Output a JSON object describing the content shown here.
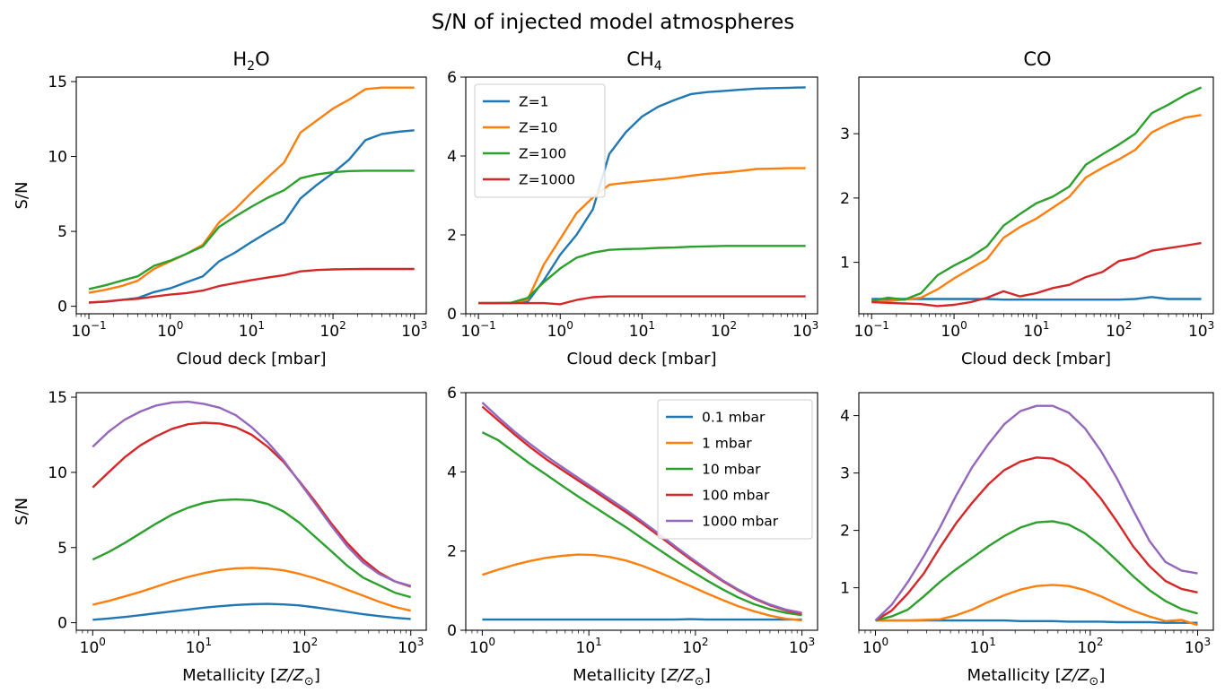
{
  "figure_title": "S/N of injected model atmospheres",
  "colors": {
    "blue": "#1f77b4",
    "orange": "#ff7f0e",
    "green": "#2ca02c",
    "red": "#d62728",
    "purple": "#9467bd"
  },
  "chart_data": [
    {
      "id": "p00",
      "type": "line",
      "title": "H2O",
      "xlabel": "Cloud deck [mbar]",
      "ylabel": "S/N",
      "xscale": "log",
      "xlim": [
        0.07,
        1400
      ],
      "ylim": [
        -0.5,
        15.3
      ],
      "xticks": [
        0.1,
        1,
        10,
        100,
        1000
      ],
      "xtick_labels": [
        [
          "10",
          "−1"
        ],
        [
          "10",
          "0"
        ],
        [
          "10",
          "1"
        ],
        [
          "10",
          "2"
        ],
        [
          "10",
          "3"
        ]
      ],
      "yticks": [
        0,
        5,
        10,
        15
      ],
      "ytick_labels": [
        "0",
        "5",
        "10",
        "15"
      ],
      "x": [
        0.1,
        0.158,
        0.251,
        0.398,
        0.631,
        1,
        1.58,
        2.51,
        3.98,
        6.31,
        10,
        15.8,
        25.1,
        39.8,
        63.1,
        100,
        158,
        251,
        398,
        631,
        1000
      ],
      "series": [
        {
          "name": "Z=1",
          "color": "#1f77b4",
          "values": [
            0.25,
            0.3,
            0.42,
            0.55,
            0.95,
            1.2,
            1.6,
            2.0,
            3.0,
            3.6,
            4.3,
            4.95,
            5.6,
            7.2,
            8.1,
            8.9,
            9.8,
            11.1,
            11.5,
            11.65,
            11.75
          ]
        },
        {
          "name": "Z=10",
          "color": "#ff7f0e",
          "values": [
            0.9,
            1.1,
            1.35,
            1.7,
            2.5,
            3.0,
            3.5,
            4.1,
            5.6,
            6.5,
            7.6,
            8.6,
            9.6,
            11.6,
            12.4,
            13.2,
            13.8,
            14.5,
            14.6,
            14.6,
            14.6
          ]
        },
        {
          "name": "Z=100",
          "color": "#2ca02c",
          "values": [
            1.15,
            1.4,
            1.7,
            2.0,
            2.7,
            3.05,
            3.5,
            4.0,
            5.3,
            6.0,
            6.65,
            7.25,
            7.75,
            8.55,
            8.8,
            8.95,
            9.03,
            9.05,
            9.05,
            9.05,
            9.05
          ]
        },
        {
          "name": "Z=1000",
          "color": "#d62728",
          "values": [
            0.25,
            0.32,
            0.42,
            0.5,
            0.65,
            0.78,
            0.88,
            1.05,
            1.35,
            1.55,
            1.75,
            1.92,
            2.08,
            2.33,
            2.42,
            2.46,
            2.48,
            2.49,
            2.49,
            2.49,
            2.49
          ]
        }
      ]
    },
    {
      "id": "p01",
      "type": "line",
      "title": "CH4",
      "xlabel": "Cloud deck [mbar]",
      "ylabel": "",
      "xscale": "log",
      "xlim": [
        0.07,
        1400
      ],
      "ylim": [
        0,
        6.0
      ],
      "xticks": [
        0.1,
        1,
        10,
        100,
        1000
      ],
      "xtick_labels": [
        [
          "10",
          "−1"
        ],
        [
          "10",
          "0"
        ],
        [
          "10",
          "1"
        ],
        [
          "10",
          "2"
        ],
        [
          "10",
          "3"
        ]
      ],
      "yticks": [
        0,
        2,
        4,
        6
      ],
      "ytick_labels": [
        "0",
        "2",
        "4",
        "6"
      ],
      "legend": {
        "placement": "upper-left"
      },
      "x": [
        0.1,
        0.158,
        0.251,
        0.398,
        0.631,
        1,
        1.58,
        2.51,
        3.98,
        6.31,
        10,
        15.8,
        25.1,
        39.8,
        63.1,
        100,
        158,
        251,
        398,
        631,
        1000
      ],
      "series": [
        {
          "name": "Z=1",
          "color": "#1f77b4",
          "values": [
            0.27,
            0.27,
            0.27,
            0.3,
            0.85,
            1.5,
            2.0,
            2.65,
            4.05,
            4.6,
            5.0,
            5.25,
            5.42,
            5.57,
            5.62,
            5.65,
            5.68,
            5.71,
            5.72,
            5.73,
            5.74
          ]
        },
        {
          "name": "Z=10",
          "color": "#ff7f0e",
          "values": [
            0.27,
            0.27,
            0.28,
            0.35,
            1.25,
            1.9,
            2.55,
            2.95,
            3.27,
            3.32,
            3.36,
            3.4,
            3.44,
            3.5,
            3.55,
            3.58,
            3.62,
            3.67,
            3.68,
            3.69,
            3.69
          ]
        },
        {
          "name": "Z=100",
          "color": "#2ca02c",
          "values": [
            0.27,
            0.27,
            0.28,
            0.4,
            0.8,
            1.15,
            1.42,
            1.55,
            1.62,
            1.64,
            1.65,
            1.67,
            1.68,
            1.7,
            1.71,
            1.72,
            1.72,
            1.72,
            1.72,
            1.72,
            1.72
          ]
        },
        {
          "name": "Z=1000",
          "color": "#d62728",
          "values": [
            0.27,
            0.27,
            0.27,
            0.27,
            0.27,
            0.24,
            0.35,
            0.42,
            0.44,
            0.44,
            0.44,
            0.44,
            0.44,
            0.44,
            0.44,
            0.44,
            0.44,
            0.44,
            0.44,
            0.44,
            0.44
          ]
        }
      ]
    },
    {
      "id": "p02",
      "type": "line",
      "title": "CO",
      "xlabel": "Cloud deck [mbar]",
      "ylabel": "",
      "xscale": "log",
      "xlim": [
        0.07,
        1400
      ],
      "ylim": [
        0.2,
        3.88
      ],
      "xticks": [
        0.1,
        1,
        10,
        100,
        1000
      ],
      "xtick_labels": [
        [
          "10",
          "−1"
        ],
        [
          "10",
          "0"
        ],
        [
          "10",
          "1"
        ],
        [
          "10",
          "2"
        ],
        [
          "10",
          "3"
        ]
      ],
      "yticks": [
        1,
        2,
        3
      ],
      "ytick_labels": [
        "1",
        "2",
        "3"
      ],
      "x": [
        0.1,
        0.158,
        0.251,
        0.398,
        0.631,
        1,
        1.58,
        2.51,
        3.98,
        6.31,
        10,
        15.8,
        25.1,
        39.8,
        63.1,
        100,
        158,
        251,
        398,
        631,
        1000
      ],
      "series": [
        {
          "name": "Z=1",
          "color": "#1f77b4",
          "values": [
            0.43,
            0.43,
            0.43,
            0.43,
            0.43,
            0.43,
            0.43,
            0.43,
            0.42,
            0.42,
            0.42,
            0.42,
            0.42,
            0.42,
            0.42,
            0.42,
            0.43,
            0.46,
            0.43,
            0.43,
            0.43
          ]
        },
        {
          "name": "Z=10",
          "color": "#ff7f0e",
          "values": [
            0.4,
            0.4,
            0.42,
            0.45,
            0.58,
            0.75,
            0.9,
            1.05,
            1.38,
            1.55,
            1.68,
            1.85,
            2.02,
            2.32,
            2.47,
            2.6,
            2.75,
            3.02,
            3.15,
            3.25,
            3.29
          ]
        },
        {
          "name": "Z=100",
          "color": "#2ca02c",
          "values": [
            0.4,
            0.45,
            0.42,
            0.52,
            0.8,
            0.95,
            1.08,
            1.25,
            1.57,
            1.75,
            1.92,
            2.02,
            2.18,
            2.52,
            2.68,
            2.83,
            3.0,
            3.32,
            3.45,
            3.6,
            3.72
          ]
        },
        {
          "name": "Z=1000",
          "color": "#d62728",
          "values": [
            0.38,
            0.37,
            0.36,
            0.35,
            0.32,
            0.34,
            0.38,
            0.45,
            0.55,
            0.47,
            0.52,
            0.6,
            0.65,
            0.77,
            0.85,
            1.02,
            1.07,
            1.18,
            1.22,
            1.26,
            1.3
          ]
        }
      ]
    },
    {
      "id": "p10",
      "type": "line",
      "title": "",
      "xlabel": "Metallicity [Z/Z⊙]",
      "ylabel": "S/N",
      "xscale": "log",
      "xlim": [
        0.7,
        1400
      ],
      "ylim": [
        -0.5,
        15.3
      ],
      "xticks": [
        1,
        10,
        100,
        1000
      ],
      "xtick_labels": [
        [
          "10",
          "0"
        ],
        [
          "10",
          "1"
        ],
        [
          "10",
          "2"
        ],
        [
          "10",
          "3"
        ]
      ],
      "yticks": [
        0,
        5,
        10,
        15
      ],
      "ytick_labels": [
        "0",
        "5",
        "10",
        "15"
      ],
      "x": [
        1,
        1.41,
        2,
        2.82,
        3.98,
        5.62,
        7.94,
        11.2,
        15.8,
        22.4,
        31.6,
        44.7,
        63.1,
        89.1,
        126,
        178,
        251,
        355,
        501,
        708,
        1000
      ],
      "series": [
        {
          "name": "0.1 mbar",
          "color": "#1f77b4",
          "values": [
            0.2,
            0.28,
            0.38,
            0.5,
            0.63,
            0.76,
            0.88,
            1.0,
            1.1,
            1.18,
            1.23,
            1.25,
            1.22,
            1.15,
            1.02,
            0.88,
            0.72,
            0.57,
            0.44,
            0.33,
            0.25
          ]
        },
        {
          "name": "1 mbar",
          "color": "#ff7f0e",
          "values": [
            1.2,
            1.45,
            1.75,
            2.05,
            2.4,
            2.75,
            3.05,
            3.3,
            3.5,
            3.62,
            3.65,
            3.6,
            3.48,
            3.25,
            2.95,
            2.6,
            2.2,
            1.8,
            1.4,
            1.05,
            0.8
          ]
        },
        {
          "name": "10 mbar",
          "color": "#2ca02c",
          "values": [
            4.2,
            4.7,
            5.3,
            5.95,
            6.6,
            7.2,
            7.65,
            7.98,
            8.15,
            8.2,
            8.15,
            7.9,
            7.4,
            6.65,
            5.7,
            4.75,
            3.8,
            3.0,
            2.5,
            2.0,
            1.7
          ]
        },
        {
          "name": "100 mbar",
          "color": "#d62728",
          "values": [
            9.0,
            10.0,
            11.0,
            11.8,
            12.4,
            12.9,
            13.2,
            13.3,
            13.25,
            13.0,
            12.5,
            11.7,
            10.7,
            9.4,
            8.05,
            6.6,
            5.3,
            4.2,
            3.35,
            2.75,
            2.4
          ]
        },
        {
          "name": "1000 mbar",
          "color": "#9467bd",
          "values": [
            11.7,
            12.7,
            13.5,
            14.05,
            14.45,
            14.65,
            14.7,
            14.55,
            14.3,
            13.8,
            13.0,
            12.0,
            10.8,
            9.35,
            7.9,
            6.45,
            5.1,
            4.0,
            3.25,
            2.75,
            2.45
          ]
        }
      ]
    },
    {
      "id": "p11",
      "type": "line",
      "title": "",
      "xlabel": "Metallicity [Z/Z⊙]",
      "ylabel": "",
      "xscale": "log",
      "xlim": [
        0.7,
        1400
      ],
      "ylim": [
        0,
        6.0
      ],
      "xticks": [
        1,
        10,
        100,
        1000
      ],
      "xtick_labels": [
        [
          "10",
          "0"
        ],
        [
          "10",
          "1"
        ],
        [
          "10",
          "2"
        ],
        [
          "10",
          "3"
        ]
      ],
      "yticks": [
        0,
        2,
        4,
        6
      ],
      "ytick_labels": [
        "0",
        "2",
        "4",
        "6"
      ],
      "legend": {
        "placement": "upper-right"
      },
      "x": [
        1,
        1.41,
        2,
        2.82,
        3.98,
        5.62,
        7.94,
        11.2,
        15.8,
        22.4,
        31.6,
        44.7,
        63.1,
        89.1,
        126,
        178,
        251,
        355,
        501,
        708,
        1000
      ],
      "series": [
        {
          "name": "0.1 mbar",
          "color": "#1f77b4",
          "values": [
            0.27,
            0.27,
            0.27,
            0.27,
            0.27,
            0.27,
            0.27,
            0.27,
            0.27,
            0.27,
            0.27,
            0.27,
            0.27,
            0.28,
            0.27,
            0.27,
            0.27,
            0.27,
            0.27,
            0.27,
            0.27
          ]
        },
        {
          "name": "1 mbar",
          "color": "#ff7f0e",
          "values": [
            1.4,
            1.53,
            1.65,
            1.75,
            1.83,
            1.88,
            1.91,
            1.9,
            1.85,
            1.76,
            1.63,
            1.47,
            1.3,
            1.12,
            0.94,
            0.77,
            0.61,
            0.48,
            0.37,
            0.29,
            0.25
          ]
        },
        {
          "name": "10 mbar",
          "color": "#2ca02c",
          "values": [
            5.0,
            4.8,
            4.5,
            4.2,
            3.93,
            3.65,
            3.38,
            3.12,
            2.86,
            2.6,
            2.32,
            2.05,
            1.78,
            1.52,
            1.27,
            1.04,
            0.83,
            0.66,
            0.53,
            0.44,
            0.38
          ]
        },
        {
          "name": "100 mbar",
          "color": "#d62728",
          "values": [
            5.65,
            5.3,
            4.95,
            4.62,
            4.32,
            4.05,
            3.78,
            3.52,
            3.25,
            2.98,
            2.7,
            2.4,
            2.1,
            1.8,
            1.52,
            1.25,
            1.01,
            0.8,
            0.63,
            0.5,
            0.42
          ]
        },
        {
          "name": "1000 mbar",
          "color": "#9467bd",
          "values": [
            5.75,
            5.38,
            5.02,
            4.7,
            4.4,
            4.12,
            3.85,
            3.58,
            3.31,
            3.04,
            2.75,
            2.45,
            2.14,
            1.84,
            1.55,
            1.27,
            1.03,
            0.82,
            0.65,
            0.52,
            0.44
          ]
        }
      ]
    },
    {
      "id": "p12",
      "type": "line",
      "title": "",
      "xlabel": "Metallicity [Z/Z⊙]",
      "ylabel": "",
      "xscale": "log",
      "xlim": [
        0.7,
        1400
      ],
      "ylim": [
        0.26,
        4.4
      ],
      "xticks": [
        1,
        10,
        100,
        1000
      ],
      "xtick_labels": [
        [
          "10",
          "0"
        ],
        [
          "10",
          "1"
        ],
        [
          "10",
          "2"
        ],
        [
          "10",
          "3"
        ]
      ],
      "yticks": [
        1,
        2,
        3,
        4
      ],
      "ytick_labels": [
        "1",
        "2",
        "3",
        "4"
      ],
      "x": [
        1,
        1.41,
        2,
        2.82,
        3.98,
        5.62,
        7.94,
        11.2,
        15.8,
        22.4,
        31.6,
        44.7,
        63.1,
        89.1,
        126,
        178,
        251,
        355,
        501,
        708,
        1000
      ],
      "series": [
        {
          "name": "0.1 mbar",
          "color": "#1f77b4",
          "values": [
            0.43,
            0.43,
            0.43,
            0.43,
            0.43,
            0.43,
            0.43,
            0.43,
            0.43,
            0.42,
            0.42,
            0.42,
            0.41,
            0.41,
            0.41,
            0.4,
            0.4,
            0.4,
            0.39,
            0.39,
            0.39
          ]
        },
        {
          "name": "1 mbar",
          "color": "#ff7f0e",
          "values": [
            0.43,
            0.43,
            0.43,
            0.44,
            0.45,
            0.52,
            0.62,
            0.75,
            0.87,
            0.97,
            1.03,
            1.05,
            1.03,
            0.96,
            0.85,
            0.72,
            0.6,
            0.5,
            0.42,
            0.44,
            0.35
          ]
        },
        {
          "name": "10 mbar",
          "color": "#2ca02c",
          "values": [
            0.43,
            0.5,
            0.62,
            0.85,
            1.1,
            1.32,
            1.52,
            1.72,
            1.9,
            2.05,
            2.14,
            2.16,
            2.1,
            1.95,
            1.73,
            1.47,
            1.2,
            0.96,
            0.77,
            0.63,
            0.55
          ]
        },
        {
          "name": "100 mbar",
          "color": "#d62728",
          "values": [
            0.43,
            0.6,
            0.9,
            1.25,
            1.7,
            2.12,
            2.48,
            2.8,
            3.05,
            3.2,
            3.27,
            3.25,
            3.12,
            2.88,
            2.55,
            2.15,
            1.72,
            1.38,
            1.12,
            0.98,
            0.92
          ]
        },
        {
          "name": "1000 mbar",
          "color": "#9467bd",
          "values": [
            0.43,
            0.7,
            1.1,
            1.55,
            2.05,
            2.6,
            3.1,
            3.5,
            3.85,
            4.08,
            4.17,
            4.17,
            4.05,
            3.78,
            3.38,
            2.9,
            2.35,
            1.82,
            1.45,
            1.3,
            1.25
          ]
        }
      ]
    }
  ]
}
